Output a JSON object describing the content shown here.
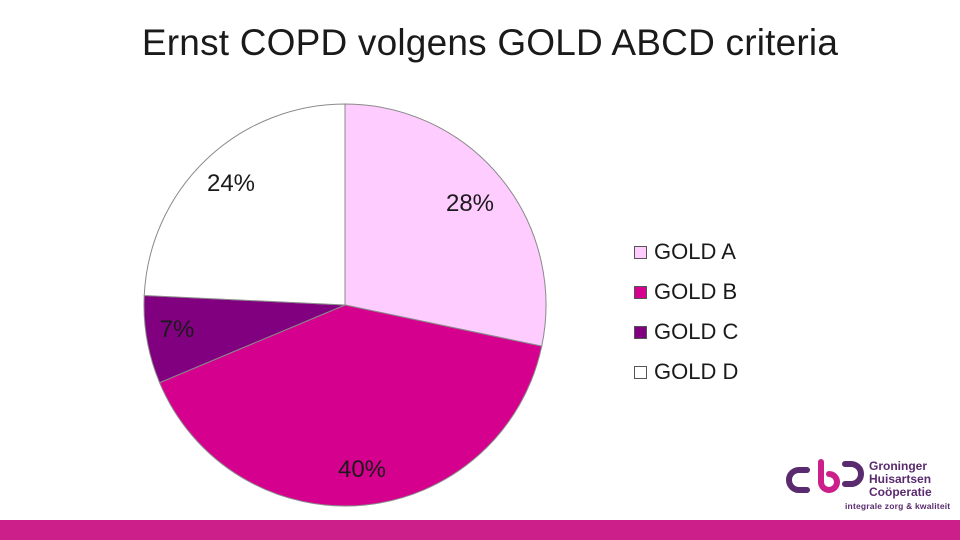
{
  "slide": {
    "title": "Ernst COPD volgens GOLD ABCD criteria"
  },
  "chart_data": {
    "type": "pie",
    "title": "Ernst COPD volgens GOLD ABCD criteria",
    "categories": [
      "GOLD A",
      "GOLD B",
      "GOLD C",
      "GOLD D"
    ],
    "values": [
      28,
      40,
      7,
      24
    ],
    "data_labels": [
      "28%",
      "40%",
      "7%",
      "24%"
    ],
    "colors": [
      "#ffccff",
      "#d6008f",
      "#800080",
      "#ffffff"
    ],
    "start_angle_deg": 0,
    "direction": "clockwise",
    "legend_position": "right"
  },
  "legend": {
    "items": [
      {
        "label": "GOLD A",
        "color": "#ffccff"
      },
      {
        "label": "GOLD B",
        "color": "#d6008f"
      },
      {
        "label": "GOLD C",
        "color": "#800080"
      },
      {
        "label": "GOLD D",
        "color": "#ffffff"
      }
    ]
  },
  "logo": {
    "line1": "Groninger",
    "line2": "Huisartsen",
    "line3": "Coöperatie",
    "tagline": "integrale zorg & kwaliteit",
    "colors": {
      "purple": "#5a2a6e",
      "magenta": "#cc1f8a"
    }
  },
  "footer": {
    "bar_color": "#cc1f8a"
  }
}
